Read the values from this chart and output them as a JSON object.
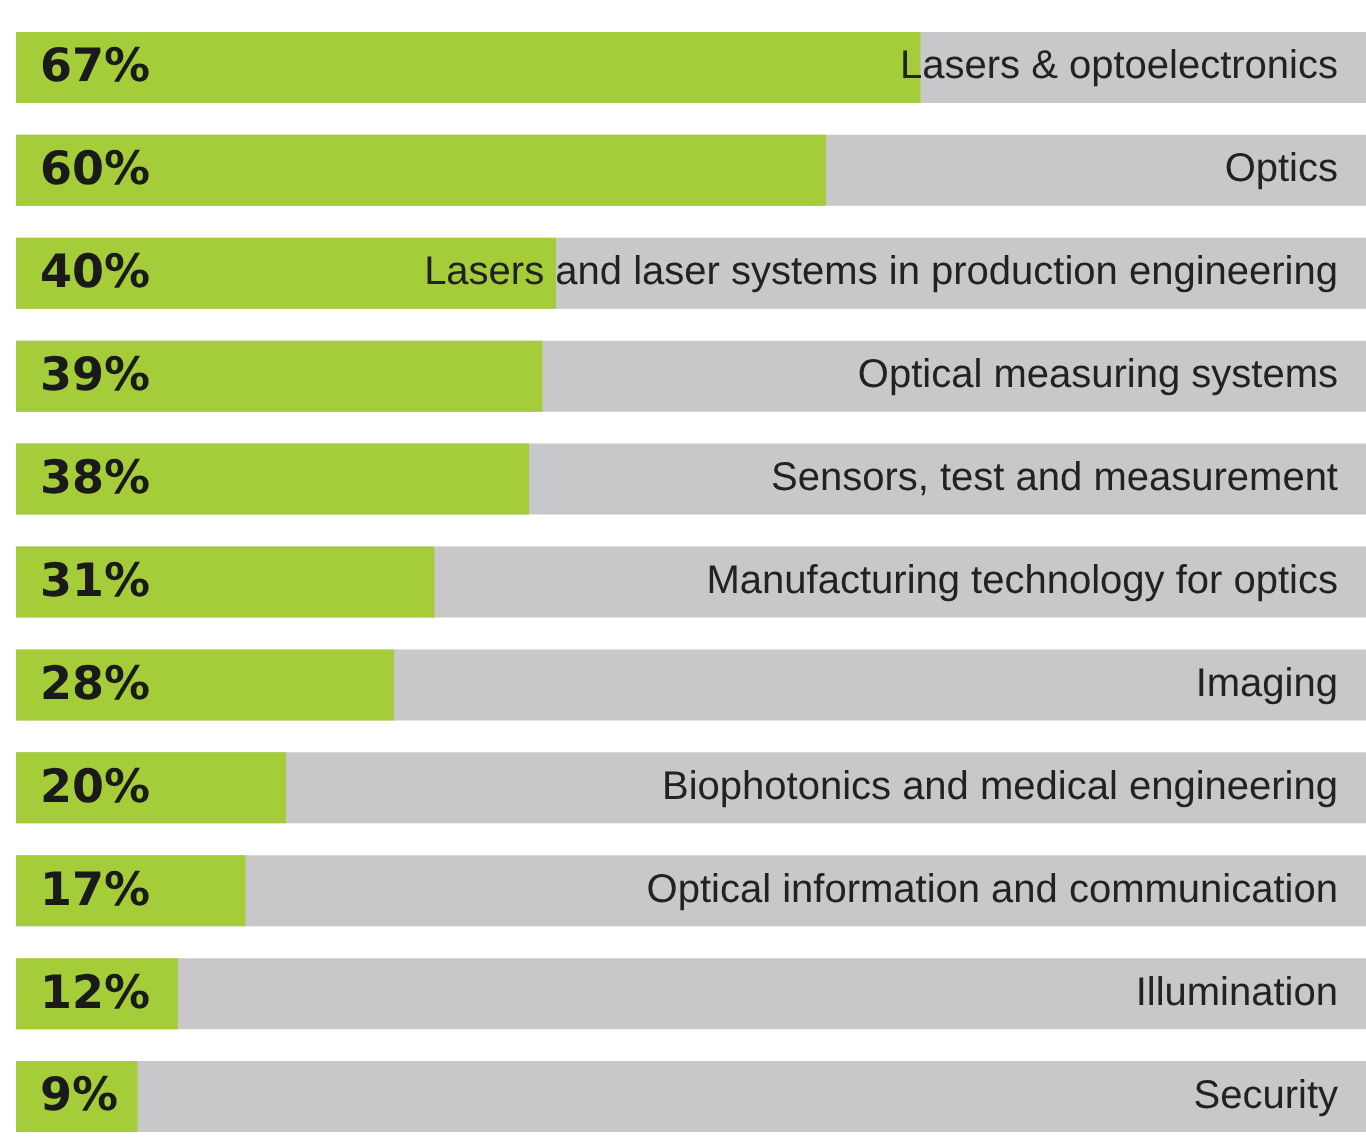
{
  "chart_data": {
    "type": "bar",
    "orientation": "horizontal",
    "categories": [
      "Lasers & optoelectronics",
      "Optics",
      "Lasers and laser systems in production engineering",
      "Optical measuring systems",
      "Sensors, test and measurement",
      "Manufacturing technology for optics",
      "Imaging",
      "Biophotonics and medical engineering",
      "Optical information and communication",
      "Illumination",
      "Security"
    ],
    "values": [
      67,
      60,
      40,
      39,
      38,
      31,
      28,
      20,
      17,
      12,
      9
    ],
    "value_labels": [
      "67%",
      "60%",
      "40%",
      "39%",
      "38%",
      "31%",
      "28%",
      "20%",
      "17%",
      "12%",
      "9%"
    ],
    "color": "#a5cd39",
    "xlim": [
      0,
      100
    ],
    "tick_labels": "y"
  }
}
